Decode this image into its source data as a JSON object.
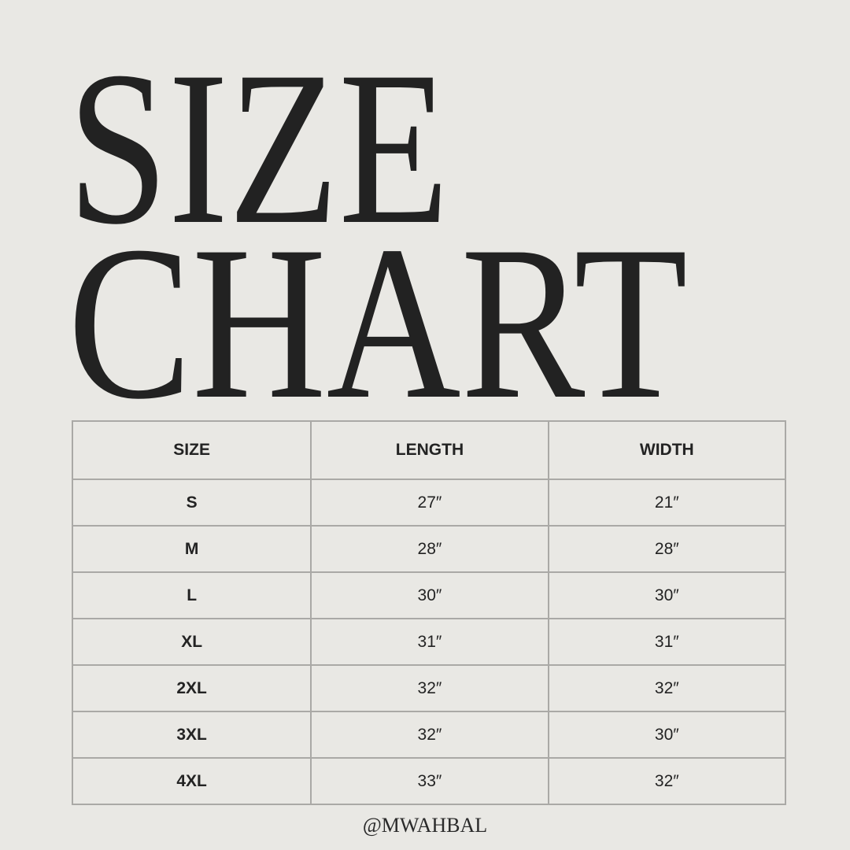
{
  "title": {
    "line1": "SIZE",
    "line2": "CHART"
  },
  "table": {
    "headers": [
      "SIZE",
      "LENGTH",
      "WIDTH"
    ],
    "rows": [
      [
        "S",
        "27″",
        "21″"
      ],
      [
        "M",
        "28″",
        "28″"
      ],
      [
        "L",
        "30″",
        "30″"
      ],
      [
        "XL",
        "31″",
        "31″"
      ],
      [
        "2XL",
        "32″",
        "32″"
      ],
      [
        "3XL",
        "32″",
        "30″"
      ],
      [
        "4XL",
        "33″",
        "32″"
      ]
    ]
  },
  "footer": {
    "handle": "@MWAHBAL"
  },
  "colors": {
    "background": "#e9e8e4",
    "text": "#232323",
    "border": "#aaa9a6"
  }
}
